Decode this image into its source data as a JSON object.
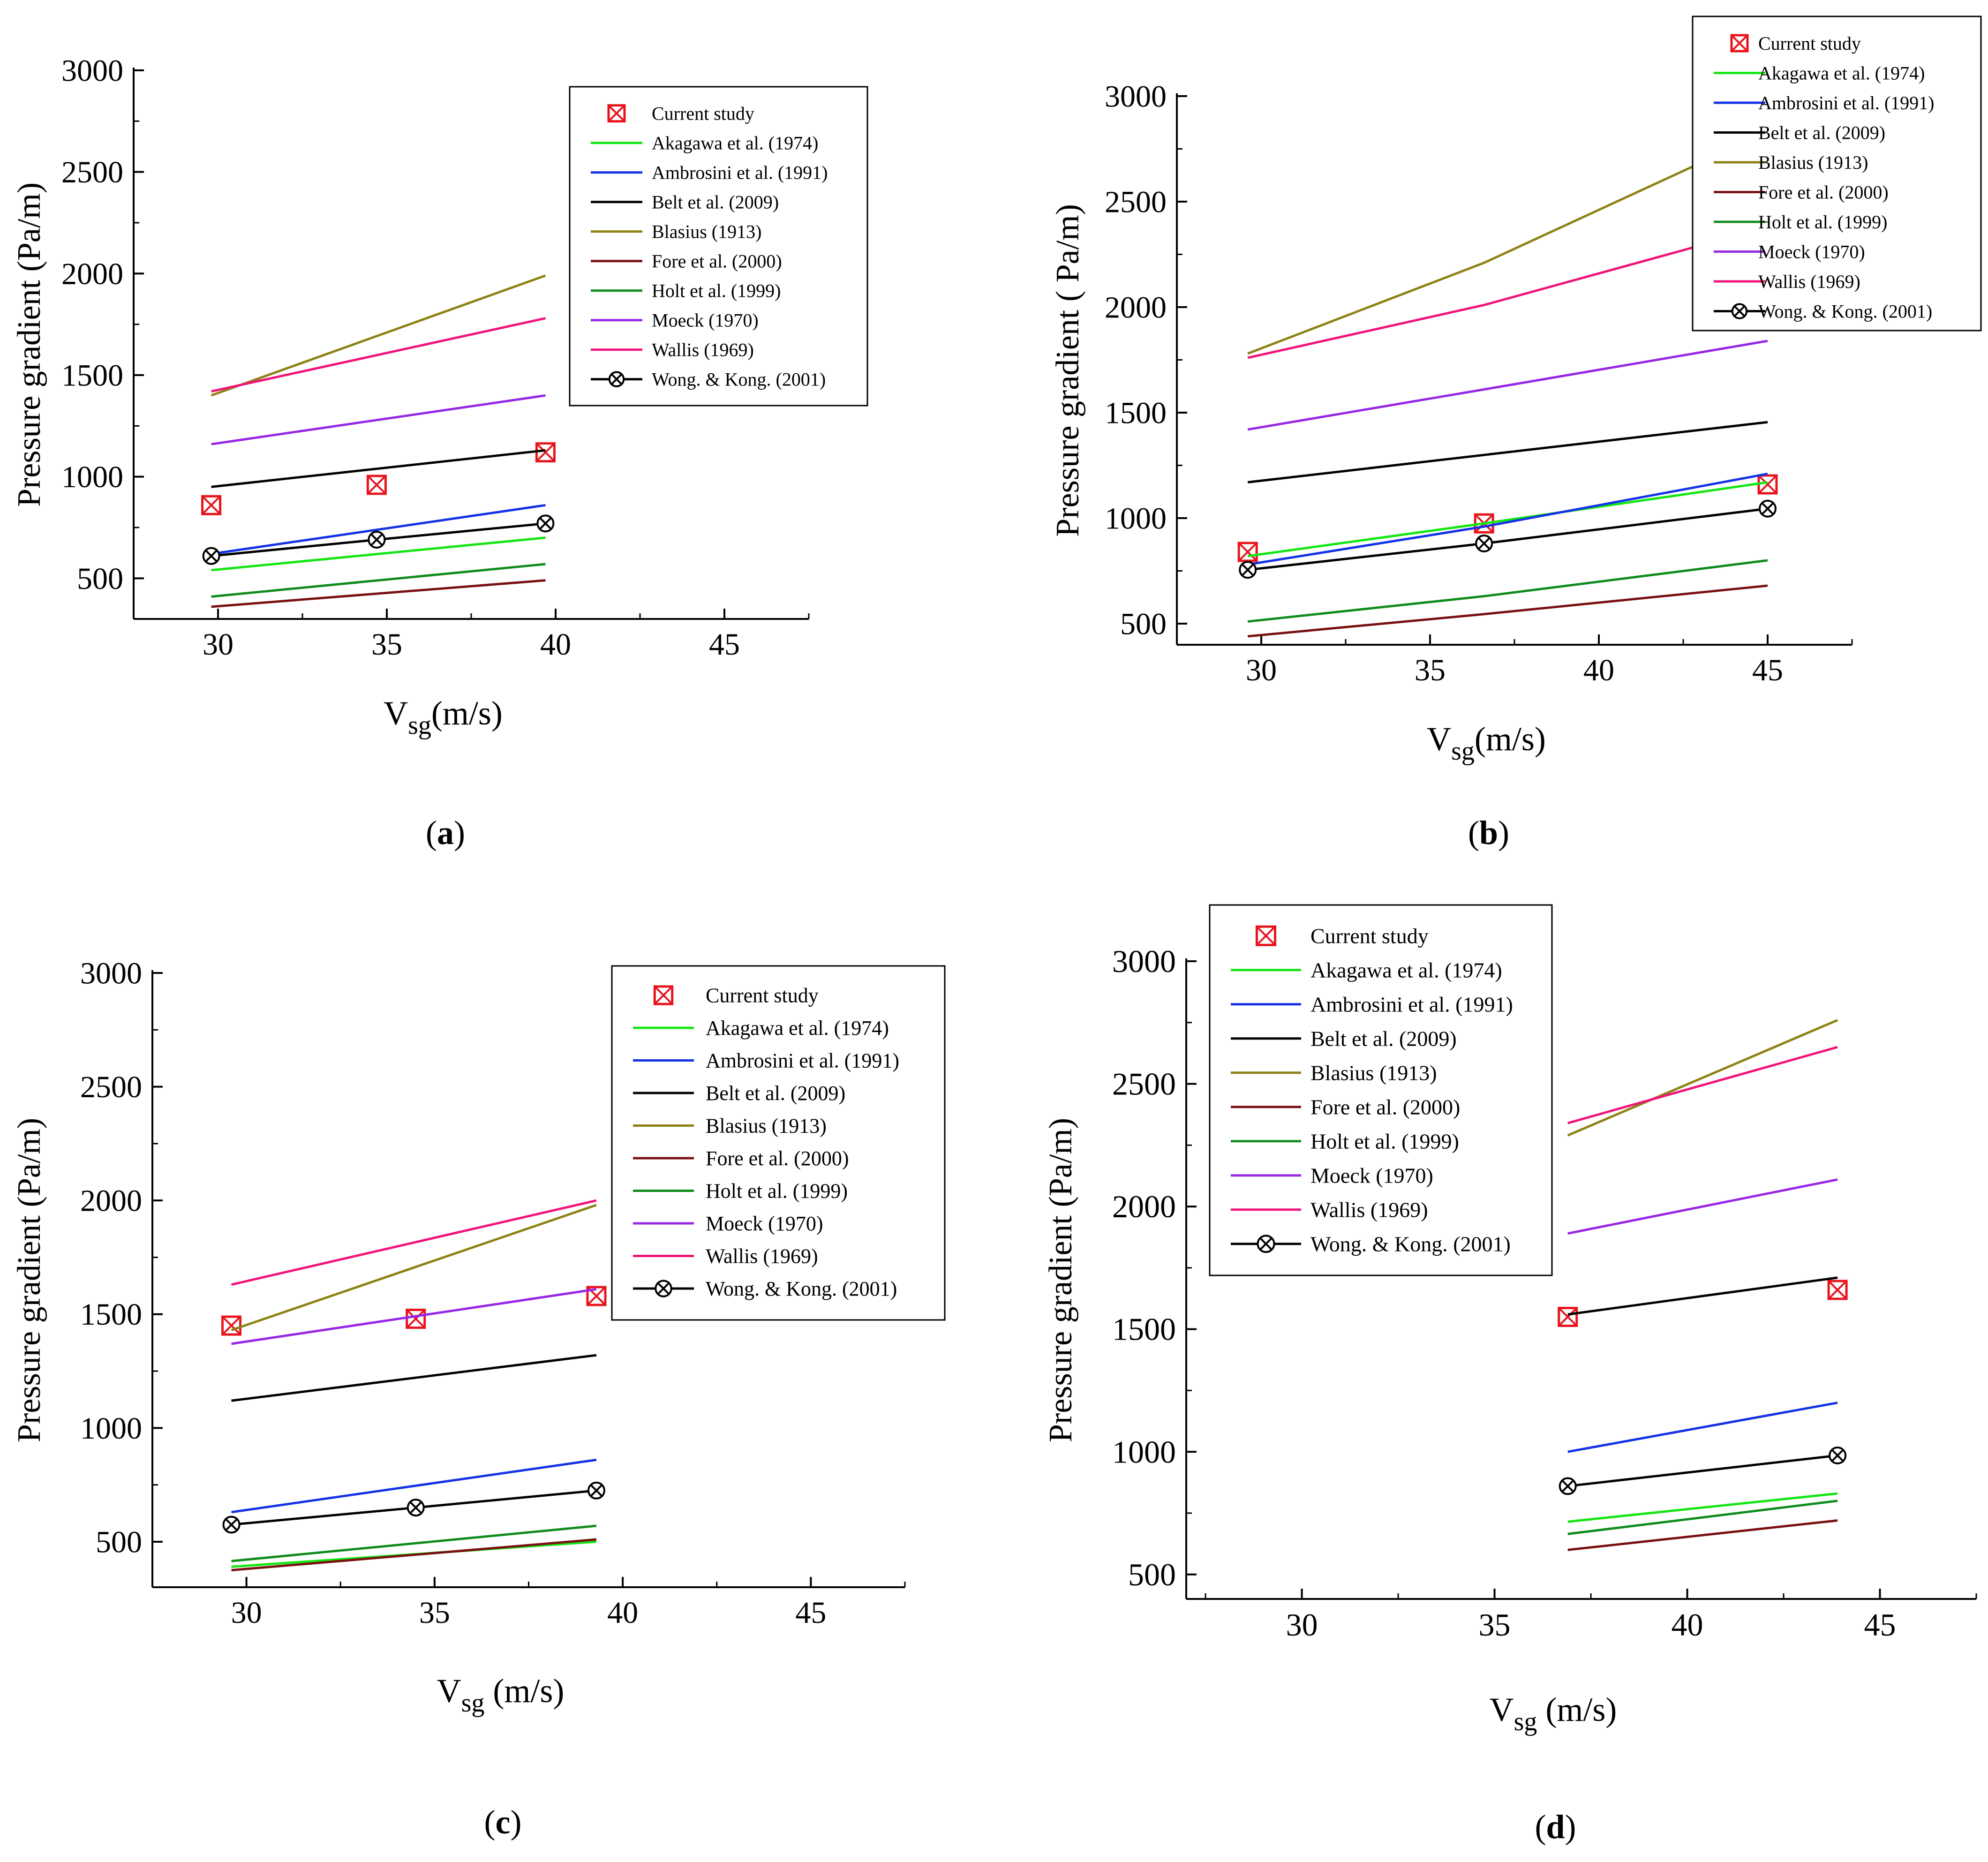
{
  "chart_data": [
    {
      "type": "line",
      "panel_label": "a",
      "xlabel_main": "V",
      "xlabel_sub": "sg",
      "xlabel_rest": "(m/s)",
      "ylabel": "Pressure gradient (Pa/m)",
      "xlim": [
        27.5,
        47.5
      ],
      "ylim": [
        300,
        3000
      ],
      "xticks": [
        30,
        35,
        40,
        45
      ],
      "yticks": [
        500,
        1000,
        1500,
        2000,
        2500,
        3000
      ],
      "legend_position": "top-right",
      "series": [
        {
          "name": "Current study",
          "kind": "marker",
          "marker": "boxed-x",
          "color": "#e8141c",
          "x": [
            29.8,
            34.7,
            39.7
          ],
          "y": [
            860,
            960,
            1120
          ]
        },
        {
          "name": "Akagawa et al. (1974)",
          "kind": "line",
          "color": "#14e614",
          "x": [
            29.8,
            39.7
          ],
          "y": [
            540,
            700
          ]
        },
        {
          "name": "Ambrosini et al. (1991)",
          "kind": "line",
          "color": "#1432e6",
          "x": [
            29.8,
            39.7
          ],
          "y": [
            620,
            860
          ]
        },
        {
          "name": "Belt et al. (2009)",
          "kind": "line",
          "color": "#000000",
          "x": [
            29.8,
            39.7
          ],
          "y": [
            950,
            1130
          ]
        },
        {
          "name": "Blasius (1913)",
          "kind": "line",
          "color": "#8c8214",
          "x": [
            29.8,
            39.7
          ],
          "y": [
            1400,
            1990
          ]
        },
        {
          "name": "Fore et al. (2000)",
          "kind": "line",
          "color": "#7a1010",
          "x": [
            29.8,
            39.7
          ],
          "y": [
            360,
            490
          ]
        },
        {
          "name": "Holt et al. (1999)",
          "kind": "line",
          "color": "#108c1e",
          "x": [
            29.8,
            39.7
          ],
          "y": [
            410,
            570
          ]
        },
        {
          "name": "Moeck (1970)",
          "kind": "line",
          "color": "#9628e6",
          "x": [
            29.8,
            39.7
          ],
          "y": [
            1160,
            1400
          ]
        },
        {
          "name": "Wallis (1969)",
          "kind": "line",
          "color": "#f0147a",
          "x": [
            29.8,
            39.7
          ],
          "y": [
            1420,
            1780
          ]
        },
        {
          "name": "Wong. & Kong. (2001)",
          "kind": "line-marker",
          "marker": "circled-x",
          "color": "#000000",
          "x": [
            29.8,
            34.7,
            39.7
          ],
          "y": [
            610,
            690,
            770
          ]
        }
      ]
    },
    {
      "type": "line",
      "panel_label": "b",
      "xlabel_main": "V",
      "xlabel_sub": "sg",
      "xlabel_rest": "(m/s)",
      "ylabel": "Pressure gradient ( Pa/m)",
      "xlim": [
        27.5,
        47.5
      ],
      "ylim": [
        400,
        3000
      ],
      "xticks": [
        30,
        35,
        40,
        45
      ],
      "yticks": [
        500,
        1000,
        1500,
        2000,
        2500,
        3000
      ],
      "legend_position": "top-right",
      "series": [
        {
          "name": "Current study",
          "kind": "marker",
          "marker": "boxed-x",
          "color": "#e8141c",
          "x": [
            29.6,
            36.6,
            45.0
          ],
          "y": [
            840,
            975,
            1160
          ]
        },
        {
          "name": "Akagawa et al. (1974)",
          "kind": "line",
          "color": "#14e614",
          "x": [
            29.6,
            36.6,
            45.0
          ],
          "y": [
            820,
            975,
            1170
          ]
        },
        {
          "name": "Ambrosini et al. (1991)",
          "kind": "line",
          "color": "#1432e6",
          "x": [
            29.6,
            36.6,
            45.0
          ],
          "y": [
            780,
            960,
            1210
          ]
        },
        {
          "name": "Belt et al. (2009)",
          "kind": "line",
          "color": "#000000",
          "x": [
            29.6,
            45.0
          ],
          "y": [
            1170,
            1455
          ]
        },
        {
          "name": "Blasius (1913)",
          "kind": "line",
          "color": "#8c8214",
          "x": [
            29.6,
            36.6,
            45.0
          ],
          "y": [
            1780,
            2210,
            2830
          ]
        },
        {
          "name": "Fore et al. (2000)",
          "kind": "line",
          "color": "#7a1010",
          "x": [
            29.6,
            36.6,
            45.0
          ],
          "y": [
            440,
            545,
            680
          ]
        },
        {
          "name": "Holt et al. (1999)",
          "kind": "line",
          "color": "#108c1e",
          "x": [
            29.6,
            36.6,
            45.0
          ],
          "y": [
            510,
            630,
            800
          ]
        },
        {
          "name": "Moeck (1970)",
          "kind": "line",
          "color": "#9628e6",
          "x": [
            29.6,
            36.6,
            45.0
          ],
          "y": [
            1420,
            1610,
            1840
          ]
        },
        {
          "name": "Wallis (1969)",
          "kind": "line",
          "color": "#f0147a",
          "x": [
            29.6,
            36.6,
            45.0
          ],
          "y": [
            1760,
            2010,
            2380
          ]
        },
        {
          "name": "Wong. & Kong. (2001)",
          "kind": "line-marker",
          "marker": "circled-x",
          "color": "#000000",
          "x": [
            29.6,
            36.6,
            45.0
          ],
          "y": [
            755,
            880,
            1045
          ]
        }
      ]
    },
    {
      "type": "line",
      "panel_label": "c",
      "xlabel_main": "V",
      "xlabel_sub": "sg",
      "xlabel_rest": " (m/s)",
      "ylabel": "Pressure gradient (Pa/m)",
      "xlim": [
        27.5,
        47.5
      ],
      "ylim": [
        300,
        3000
      ],
      "xticks": [
        30,
        35,
        40,
        45
      ],
      "yticks": [
        500,
        1000,
        1500,
        2000,
        2500,
        3000
      ],
      "legend_position": "top-right",
      "series": [
        {
          "name": "Current study",
          "kind": "marker",
          "marker": "boxed-x",
          "color": "#e8141c",
          "x": [
            29.6,
            34.5,
            39.3
          ],
          "y": [
            1450,
            1480,
            1580
          ]
        },
        {
          "name": "Akagawa et al. (1974)",
          "kind": "line",
          "color": "#14e614",
          "x": [
            29.6,
            39.3
          ],
          "y": [
            390,
            500
          ]
        },
        {
          "name": "Ambrosini et al. (1991)",
          "kind": "line",
          "color": "#1432e6",
          "x": [
            29.6,
            39.3
          ],
          "y": [
            630,
            860
          ]
        },
        {
          "name": "Belt et al. (2009)",
          "kind": "line",
          "color": "#000000",
          "x": [
            29.6,
            39.3
          ],
          "y": [
            1120,
            1320
          ]
        },
        {
          "name": "Blasius (1913)",
          "kind": "line",
          "color": "#8c8214",
          "x": [
            29.6,
            39.3
          ],
          "y": [
            1430,
            1980
          ]
        },
        {
          "name": "Fore et al. (2000)",
          "kind": "line",
          "color": "#7a1010",
          "x": [
            29.6,
            39.3
          ],
          "y": [
            375,
            510
          ]
        },
        {
          "name": "Holt et al. (1999)",
          "kind": "line",
          "color": "#108c1e",
          "x": [
            29.6,
            39.3
          ],
          "y": [
            415,
            570
          ]
        },
        {
          "name": "Moeck (1970)",
          "kind": "line",
          "color": "#9628e6",
          "x": [
            29.6,
            39.3
          ],
          "y": [
            1370,
            1610
          ]
        },
        {
          "name": "Wallis (1969)",
          "kind": "line",
          "color": "#f0147a",
          "x": [
            29.6,
            39.3
          ],
          "y": [
            1630,
            2000
          ]
        },
        {
          "name": "Wong. & Kong. (2001)",
          "kind": "line-marker",
          "marker": "circled-x",
          "color": "#000000",
          "x": [
            29.6,
            34.5,
            39.3
          ],
          "y": [
            575,
            650,
            725
          ]
        }
      ]
    },
    {
      "type": "line",
      "panel_label": "d",
      "xlabel_main": "V",
      "xlabel_sub": "sg",
      "xlabel_rest": " (m/s)",
      "ylabel": "Pressure gradient (Pa/m)",
      "xlim": [
        27.0,
        47.5
      ],
      "ylim": [
        400,
        3000
      ],
      "xticks": [
        30,
        35,
        40,
        45
      ],
      "yticks": [
        500,
        1000,
        1500,
        2000,
        2500,
        3000
      ],
      "legend_position": "top-left",
      "series": [
        {
          "name": "Current study",
          "kind": "marker",
          "marker": "boxed-x",
          "color": "#e8141c",
          "x": [
            36.9,
            43.9
          ],
          "y": [
            1550,
            1660
          ]
        },
        {
          "name": "Akagawa et al. (1974)",
          "kind": "line",
          "color": "#14e614",
          "x": [
            36.9,
            43.9
          ],
          "y": [
            715,
            830
          ]
        },
        {
          "name": "Ambrosini et al. (1991)",
          "kind": "line",
          "color": "#1432e6",
          "x": [
            36.9,
            43.9
          ],
          "y": [
            1000,
            1200
          ]
        },
        {
          "name": "Belt et al. (2009)",
          "kind": "line",
          "color": "#000000",
          "x": [
            36.9,
            43.9
          ],
          "y": [
            1560,
            1710
          ]
        },
        {
          "name": "Blasius (1913)",
          "kind": "line",
          "color": "#8c8214",
          "x": [
            36.9,
            43.9
          ],
          "y": [
            2290,
            2760
          ]
        },
        {
          "name": "Fore et al. (2000)",
          "kind": "line",
          "color": "#7a1010",
          "x": [
            36.9,
            43.9
          ],
          "y": [
            600,
            720
          ]
        },
        {
          "name": "Holt et al. (1999)",
          "kind": "line",
          "color": "#108c1e",
          "x": [
            36.9,
            43.9
          ],
          "y": [
            665,
            800
          ]
        },
        {
          "name": "Moeck (1970)",
          "kind": "line",
          "color": "#9628e6",
          "x": [
            36.9,
            43.9
          ],
          "y": [
            1890,
            2110
          ]
        },
        {
          "name": "Wallis (1969)",
          "kind": "line",
          "color": "#f0147a",
          "x": [
            36.9,
            43.9
          ],
          "y": [
            2340,
            2650
          ]
        },
        {
          "name": "Wong. & Kong. (2001)",
          "kind": "line-marker",
          "marker": "circled-x",
          "color": "#000000",
          "x": [
            36.9,
            43.9
          ],
          "y": [
            860,
            985
          ]
        }
      ]
    }
  ]
}
